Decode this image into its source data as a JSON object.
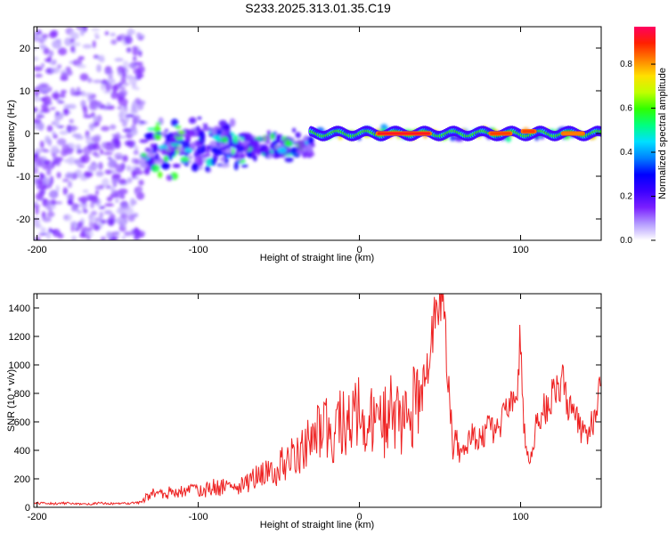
{
  "title": "S233.2025.313.01.35.C19",
  "chart_data": [
    {
      "type": "heatmap",
      "panel": "spectrogram",
      "xlabel": "Height of straight line (km)",
      "ylabel": "Frequency (Hz)",
      "xlim": [
        -202,
        150
      ],
      "ylim": [
        -25,
        25
      ],
      "xticks": [
        -200,
        -100,
        0,
        100
      ],
      "yticks": [
        -20,
        -10,
        0,
        10,
        20
      ],
      "colorbar": {
        "label": "Normalized spectral amplitude",
        "range": [
          0,
          0.97
        ],
        "ticks": [
          "0.0",
          "0.2",
          "0.4",
          "0.6",
          "0.8"
        ],
        "tick_values": [
          0.0,
          0.2,
          0.4,
          0.6,
          0.8
        ],
        "colormap": [
          "#ffffff",
          "#b49bff",
          "#7a1fff",
          "#3a00ff",
          "#0000ff",
          "#0080ff",
          "#00e0ff",
          "#00ff80",
          "#30ff00",
          "#c0ff00",
          "#ffe000",
          "#ff8000",
          "#ff2000",
          "#ff0060"
        ]
      },
      "regions": [
        {
          "x": [
            -202,
            -135
          ],
          "freq_center": 0,
          "freq_spread": 25,
          "amplitude": 0.15,
          "description": "broadband noise"
        },
        {
          "x": [
            -135,
            -30
          ],
          "freq_center": -3,
          "freq_spread": 10,
          "amplitude": 0.25,
          "description": "scattered clusters"
        },
        {
          "x": [
            -30,
            150
          ],
          "freq_center": 0,
          "freq_spread": 1.5,
          "amplitude": 0.7,
          "description": "narrow band near 0 Hz"
        }
      ],
      "peak_segments": [
        {
          "x": [
            10,
            45
          ],
          "freq": 0,
          "amplitude": 0.95
        },
        {
          "x": [
            80,
            95
          ],
          "freq": 0,
          "amplitude": 0.9
        },
        {
          "x": [
            100,
            110
          ],
          "freq": 0.5,
          "amplitude": 0.9
        },
        {
          "x": [
            125,
            140
          ],
          "freq": 0,
          "amplitude": 0.85
        }
      ]
    },
    {
      "type": "line",
      "panel": "snr",
      "xlabel": "Height of straight line (km)",
      "ylabel": "SNR (10 * v/v)",
      "xlim": [
        -202,
        150
      ],
      "ylim": [
        0,
        1500
      ],
      "xticks": [
        -200,
        -100,
        0,
        100
      ],
      "yticks": [
        0,
        200,
        400,
        600,
        800,
        1000,
        1200,
        1400
      ],
      "color": "#ee2222",
      "series": [
        {
          "name": "SNR",
          "x": [
            -202,
            -190,
            -180,
            -170,
            -160,
            -150,
            -140,
            -135,
            -130,
            -125,
            -120,
            -115,
            -110,
            -105,
            -100,
            -95,
            -90,
            -85,
            -80,
            -75,
            -70,
            -65,
            -60,
            -55,
            -50,
            -45,
            -40,
            -35,
            -30,
            -25,
            -20,
            -15,
            -10,
            -5,
            0,
            5,
            10,
            15,
            20,
            25,
            30,
            35,
            40,
            42,
            44,
            46,
            48,
            50,
            52,
            54,
            56,
            58,
            60,
            62,
            65,
            70,
            75,
            80,
            85,
            90,
            95,
            98,
            100,
            102,
            104,
            106,
            110,
            115,
            120,
            125,
            130,
            135,
            140,
            145,
            150
          ],
          "y": [
            30,
            25,
            30,
            20,
            30,
            25,
            30,
            35,
            100,
            80,
            110,
            90,
            120,
            110,
            130,
            120,
            150,
            140,
            170,
            160,
            180,
            200,
            220,
            240,
            280,
            320,
            360,
            400,
            450,
            520,
            580,
            560,
            620,
            600,
            640,
            620,
            580,
            600,
            650,
            620,
            640,
            700,
            860,
            1000,
            1150,
            1300,
            1420,
            1450,
            1300,
            1100,
            800,
            400,
            500,
            350,
            420,
            500,
            480,
            560,
            520,
            680,
            700,
            900,
            1200,
            600,
            400,
            300,
            600,
            700,
            800,
            900,
            700,
            600,
            500,
            600,
            900
          ]
        }
      ]
    }
  ]
}
